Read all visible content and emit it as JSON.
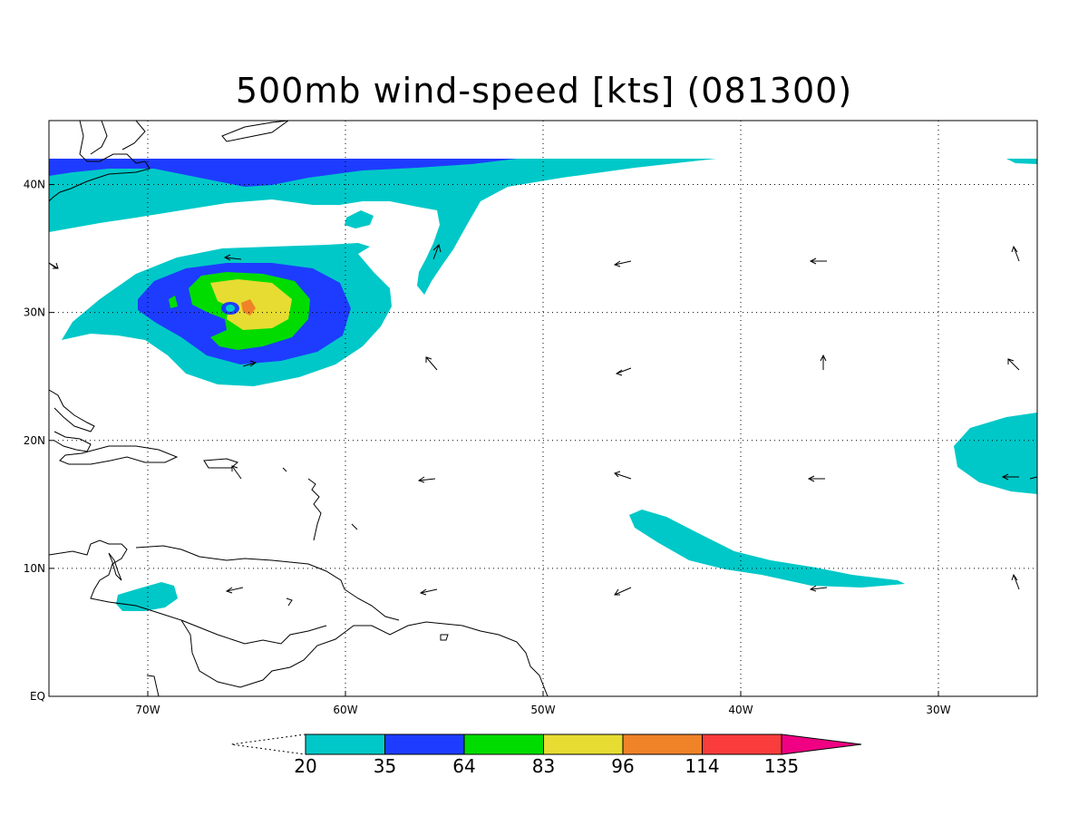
{
  "map": {
    "title": "500mb wind-speed [kts] (081300)",
    "lon_range": [
      -75,
      -25
    ],
    "lat_range": [
      0,
      45
    ],
    "lon_ticks": [
      {
        "lon": -70,
        "label": "70W"
      },
      {
        "lon": -60,
        "label": "60W"
      },
      {
        "lon": -50,
        "label": "50W"
      },
      {
        "lon": -40,
        "label": "40W"
      },
      {
        "lon": -30,
        "label": "30W"
      }
    ],
    "lat_ticks": [
      {
        "lat": 0,
        "label": "EQ"
      },
      {
        "lat": 10,
        "label": "10N"
      },
      {
        "lat": 20,
        "label": "20N"
      },
      {
        "lat": 30,
        "label": "30N"
      },
      {
        "lat": 40,
        "label": "40N"
      }
    ],
    "grid": true
  },
  "colorbar": {
    "levels": [
      "20",
      "35",
      "64",
      "83",
      "96",
      "114",
      "135"
    ],
    "colors": [
      "#00c8c8",
      "#1e3cff",
      "#00dc00",
      "#e6dc32",
      "#f08228",
      "#fa3c3c",
      "#f00082"
    ]
  }
}
